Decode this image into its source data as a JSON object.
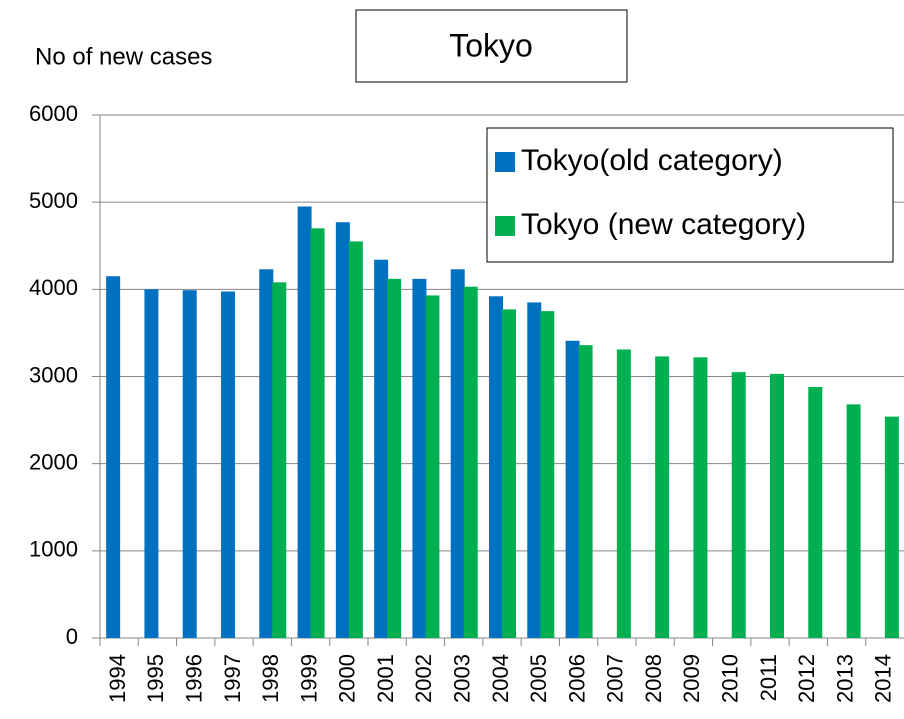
{
  "chart_data": {
    "type": "bar",
    "title": "Tokyo",
    "y_label": "No of new cases",
    "categories": [
      "1994",
      "1995",
      "1996",
      "1997",
      "1998",
      "1999",
      "2000",
      "2001",
      "2002",
      "2003",
      "2004",
      "2005",
      "2006",
      "2007",
      "2008",
      "2009",
      "2010",
      "2011",
      "2012",
      "2013",
      "2014"
    ],
    "series": [
      {
        "name": "Tokyo(old category)",
        "color": "#0070c0",
        "values": [
          4150,
          4000,
          3990,
          3975,
          4230,
          4950,
          4770,
          4340,
          4120,
          4230,
          3920,
          3850,
          3410,
          null,
          null,
          null,
          null,
          null,
          null,
          null,
          null
        ]
      },
      {
        "name": "Tokyo (new category)",
        "color": "#00b050",
        "values": [
          null,
          null,
          null,
          null,
          4080,
          4700,
          4550,
          4120,
          3930,
          4030,
          3770,
          3750,
          3360,
          3310,
          3230,
          3220,
          3050,
          3030,
          2880,
          2680,
          2540
        ]
      }
    ],
    "ylim": [
      0,
      6000
    ],
    "yticks": [
      0,
      1000,
      2000,
      3000,
      4000,
      5000,
      6000
    ],
    "grid": true,
    "legend": "upper right"
  }
}
